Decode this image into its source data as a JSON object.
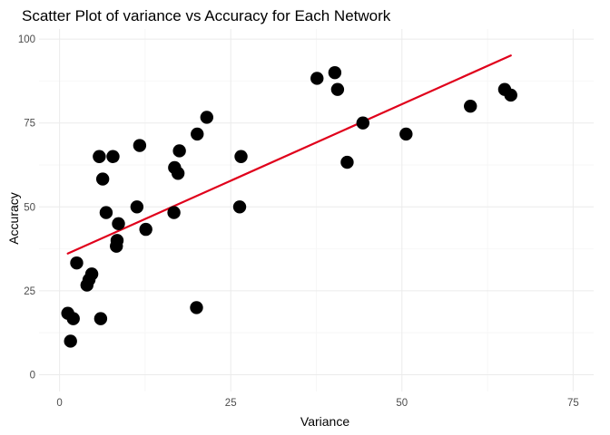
{
  "chart_data": {
    "type": "scatter",
    "title": "Scatter Plot of variance vs Accuracy for Each Network",
    "xlabel": "Variance",
    "ylabel": "Accuracy",
    "xlim": [
      -3,
      78
    ],
    "ylim": [
      -5,
      103
    ],
    "x_ticks": [
      0,
      25,
      50,
      75
    ],
    "y_ticks": [
      0,
      25,
      50,
      75,
      100
    ],
    "grid": true,
    "point_color": "#000000",
    "trend_color": "#e0001b",
    "points": [
      {
        "x": 1.2,
        "y": 18.3
      },
      {
        "x": 2.0,
        "y": 16.7
      },
      {
        "x": 1.6,
        "y": 10.0
      },
      {
        "x": 2.5,
        "y": 33.3
      },
      {
        "x": 4.0,
        "y": 26.7
      },
      {
        "x": 4.3,
        "y": 28.3
      },
      {
        "x": 4.7,
        "y": 30.0
      },
      {
        "x": 5.8,
        "y": 65.0
      },
      {
        "x": 6.0,
        "y": 16.7
      },
      {
        "x": 6.3,
        "y": 58.3
      },
      {
        "x": 6.8,
        "y": 48.3
      },
      {
        "x": 7.8,
        "y": 65.0
      },
      {
        "x": 8.3,
        "y": 38.3
      },
      {
        "x": 8.4,
        "y": 40.0
      },
      {
        "x": 8.6,
        "y": 45.0
      },
      {
        "x": 11.3,
        "y": 50.0
      },
      {
        "x": 11.7,
        "y": 68.3
      },
      {
        "x": 12.6,
        "y": 43.3
      },
      {
        "x": 16.7,
        "y": 48.3
      },
      {
        "x": 16.8,
        "y": 61.7
      },
      {
        "x": 17.3,
        "y": 60.0
      },
      {
        "x": 17.5,
        "y": 66.7
      },
      {
        "x": 20.0,
        "y": 20.0
      },
      {
        "x": 20.1,
        "y": 71.7
      },
      {
        "x": 21.5,
        "y": 76.7
      },
      {
        "x": 26.3,
        "y": 50.0
      },
      {
        "x": 26.5,
        "y": 65.0
      },
      {
        "x": 37.6,
        "y": 88.3
      },
      {
        "x": 40.2,
        "y": 90.0
      },
      {
        "x": 40.6,
        "y": 85.0
      },
      {
        "x": 42.0,
        "y": 63.3
      },
      {
        "x": 44.3,
        "y": 75.0
      },
      {
        "x": 50.6,
        "y": 71.7
      },
      {
        "x": 60.0,
        "y": 80.0
      },
      {
        "x": 65.0,
        "y": 85.0
      },
      {
        "x": 65.9,
        "y": 83.3
      }
    ],
    "trend_line": {
      "x": [
        1.2,
        65.9
      ],
      "y": [
        36.1,
        95.1
      ]
    }
  }
}
